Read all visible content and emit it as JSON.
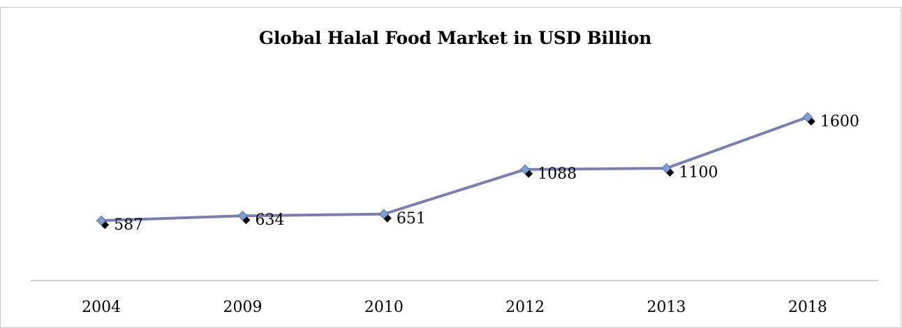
{
  "chart_data": {
    "type": "line",
    "title": "Global Halal Food Market in USD Billion",
    "xlabel": "",
    "ylabel": "",
    "categories": [
      "2004",
      "2009",
      "2010",
      "2012",
      "2013",
      "2018"
    ],
    "series": [
      {
        "values": [
          587,
          634,
          651,
          1088,
          1100,
          1600
        ],
        "color": "#7b7fb0",
        "marker": "diamond",
        "marker_color": "#7f9fd0"
      }
    ],
    "data_labels": true,
    "ylim": [
      0,
      2000
    ],
    "grid": false,
    "legend": "none"
  }
}
